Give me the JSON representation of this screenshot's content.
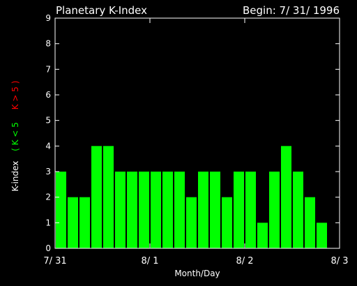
{
  "chart_data": {
    "type": "bar",
    "title": "Planetary K-Index",
    "begin_label": "Begin: 7/ 31/ 1996",
    "xlabel": "Month/Day",
    "ylabel_parts": [
      {
        "text": "K-index",
        "color": "#ffffff"
      },
      {
        "text": "( K < 5",
        "color": "#00ff00"
      },
      {
        "text": "K > 5 )",
        "color": "#ff0000"
      }
    ],
    "ylim": [
      0,
      9
    ],
    "yticks": [
      0,
      1,
      2,
      3,
      4,
      5,
      6,
      7,
      8,
      9
    ],
    "xlim": [
      0,
      3
    ],
    "xticks": [
      {
        "value": 0,
        "label": "7/ 31"
      },
      {
        "value": 1,
        "label": "8/ 1"
      },
      {
        "value": 2,
        "label": "8/ 2"
      },
      {
        "value": 3,
        "label": "8/ 3"
      }
    ],
    "values": [
      3,
      2,
      2,
      4,
      4,
      3,
      3,
      3,
      3,
      3,
      3,
      2,
      3,
      3,
      2,
      3,
      3,
      1,
      3,
      4,
      3,
      2,
      1
    ],
    "colors": {
      "low": "#00ff00",
      "high": "#ff0000",
      "axis": "#ffffff",
      "background": "#000000"
    },
    "threshold": 5,
    "bars_per_day": 8
  }
}
